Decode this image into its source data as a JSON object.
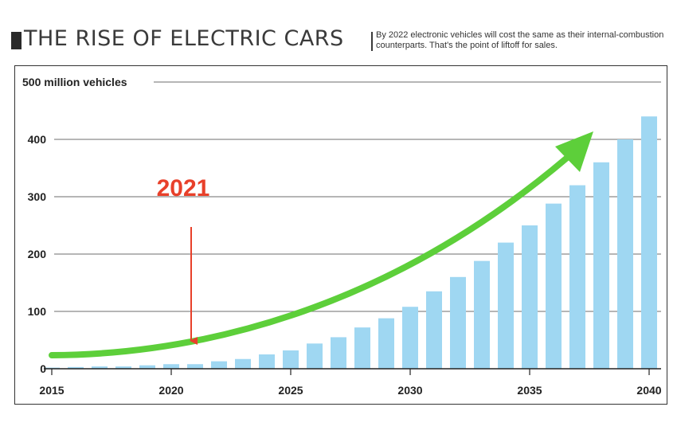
{
  "header": {
    "title": "THE RISE OF ELECTRIC CARS",
    "subtitle": "By 2022 electronic vehicles will cost the same as their internal-combustion counterparts. That's the point of liftoff for sales."
  },
  "chart_data": {
    "type": "bar",
    "x": [
      2015,
      2016,
      2017,
      2018,
      2019,
      2020,
      2021,
      2022,
      2023,
      2024,
      2025,
      2026,
      2027,
      2028,
      2029,
      2030,
      2031,
      2032,
      2033,
      2034,
      2035,
      2036,
      2037,
      2038,
      2039,
      2040
    ],
    "values": [
      2,
      3,
      4,
      4,
      6,
      8,
      8,
      13,
      17,
      25,
      32,
      44,
      55,
      72,
      88,
      108,
      135,
      160,
      188,
      220,
      250,
      288,
      320,
      360,
      400,
      440
    ],
    "ylim": [
      0,
      500
    ],
    "yticks": [
      0,
      100,
      200,
      300,
      400
    ],
    "ytick_labels": [
      "0",
      "100",
      "200",
      "300",
      "400"
    ],
    "top_label": "500 million vehicles",
    "xticks": [
      2015,
      2020,
      2025,
      2030,
      2035,
      2040
    ],
    "xtick_labels": [
      "2015",
      "2020",
      "2025",
      "2030",
      "2035",
      "2040"
    ],
    "grid": true,
    "bar_color": "#9fd7f2",
    "trend_arrow_color": "#5dcf3a",
    "annotation": {
      "text": "2021",
      "x": 2021,
      "color": "#e8402a"
    }
  }
}
